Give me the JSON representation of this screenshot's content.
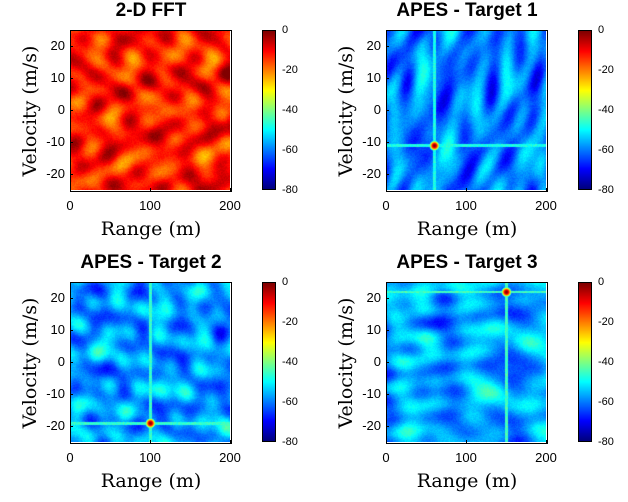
{
  "chart_data": [
    {
      "type": "heatmap",
      "title": "2-D FFT",
      "xlabel": "Range (m)",
      "ylabel": "Velocity (m/s)",
      "xlim": [
        0,
        200
      ],
      "ylim": [
        -25,
        25
      ],
      "xticks": [
        "0",
        "100",
        "200"
      ],
      "yticks": [
        "20",
        "10",
        "0",
        "-10",
        "-20"
      ],
      "colorbar": {
        "min": -80,
        "max": 0,
        "ticks": [
          "0",
          "-20",
          "-40",
          "-60",
          "-80"
        ],
        "colormap": "jet"
      },
      "background_level_db": -12,
      "background_variation_db": 7,
      "targets": []
    },
    {
      "type": "heatmap",
      "title": "APES - Target 1",
      "xlabel": "Range (m)",
      "ylabel": "Velocity (m/s)",
      "xlim": [
        0,
        200
      ],
      "ylim": [
        -25,
        25
      ],
      "xticks": [
        "0",
        "100",
        "200"
      ],
      "yticks": [
        "20",
        "10",
        "0",
        "-10",
        "-20"
      ],
      "colorbar": {
        "min": -80,
        "max": 0,
        "ticks": [
          "0",
          "-20",
          "-40",
          "-60",
          "-80"
        ],
        "colormap": "jet"
      },
      "background_level_db": -60,
      "background_variation_db": 7,
      "targets": [
        {
          "range_m": 60,
          "velocity_mps": -11,
          "level_db": 0
        }
      ]
    },
    {
      "type": "heatmap",
      "title": "APES - Target 2",
      "xlabel": "Range (m)",
      "ylabel": "Velocity (m/s)",
      "xlim": [
        0,
        200
      ],
      "ylim": [
        -25,
        25
      ],
      "xticks": [
        "0",
        "100",
        "200"
      ],
      "yticks": [
        "20",
        "10",
        "0",
        "-10",
        "-20"
      ],
      "colorbar": {
        "min": -80,
        "max": 0,
        "ticks": [
          "0",
          "-20",
          "-40",
          "-60",
          "-80"
        ],
        "colormap": "jet"
      },
      "background_level_db": -58,
      "background_variation_db": 7,
      "targets": [
        {
          "range_m": 100,
          "velocity_mps": -19,
          "level_db": 0
        }
      ]
    },
    {
      "type": "heatmap",
      "title": "APES - Target 3",
      "xlabel": "Range (m)",
      "ylabel": "Velocity (m/s)",
      "xlim": [
        0,
        200
      ],
      "ylim": [
        -25,
        25
      ],
      "xticks": [
        "0",
        "100",
        "200"
      ],
      "yticks": [
        "20",
        "10",
        "0",
        "-10",
        "-20"
      ],
      "colorbar": {
        "min": -80,
        "max": 0,
        "ticks": [
          "0",
          "-20",
          "-40",
          "-60",
          "-80"
        ],
        "colormap": "jet"
      },
      "background_level_db": -57,
      "background_variation_db": 7,
      "targets": [
        {
          "range_m": 150,
          "velocity_mps": 22,
          "level_db": 0
        }
      ]
    }
  ]
}
